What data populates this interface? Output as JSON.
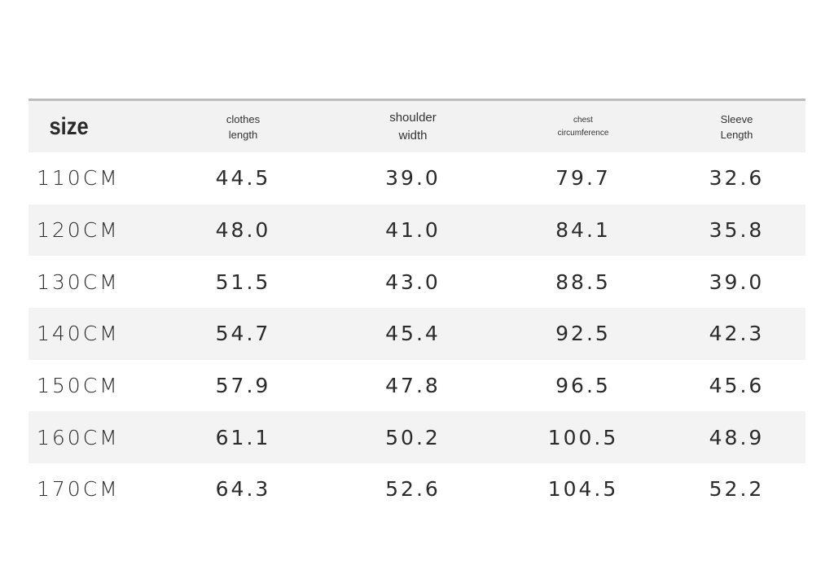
{
  "table": {
    "headers": {
      "size": "size",
      "clothes_length": "clothes\nlength",
      "shoulder_width": "shoulder\nwidth",
      "chest": "chest\ncircumference",
      "sleeve": "Sleeve\nLength"
    },
    "rows": [
      {
        "size": "110CM",
        "clothes_length": "44.5",
        "shoulder_width": "39.0",
        "chest": "79.7",
        "sleeve": "32.6"
      },
      {
        "size": "120CM",
        "clothes_length": "48.0",
        "shoulder_width": "41.0",
        "chest": "84.1",
        "sleeve": "35.8"
      },
      {
        "size": "130CM",
        "clothes_length": "51.5",
        "shoulder_width": "43.0",
        "chest": "88.5",
        "sleeve": "39.0"
      },
      {
        "size": "140CM",
        "clothes_length": "54.7",
        "shoulder_width": "45.4",
        "chest": "92.5",
        "sleeve": "42.3"
      },
      {
        "size": "150CM",
        "clothes_length": "57.9",
        "shoulder_width": "47.8",
        "chest": "96.5",
        "sleeve": "45.6"
      },
      {
        "size": "160CM",
        "clothes_length": "61.1",
        "shoulder_width": "50.2",
        "chest": "100.5",
        "sleeve": "48.9"
      },
      {
        "size": "170CM",
        "clothes_length": "64.3",
        "shoulder_width": "52.6",
        "chest": "104.5",
        "sleeve": "52.2"
      }
    ]
  }
}
